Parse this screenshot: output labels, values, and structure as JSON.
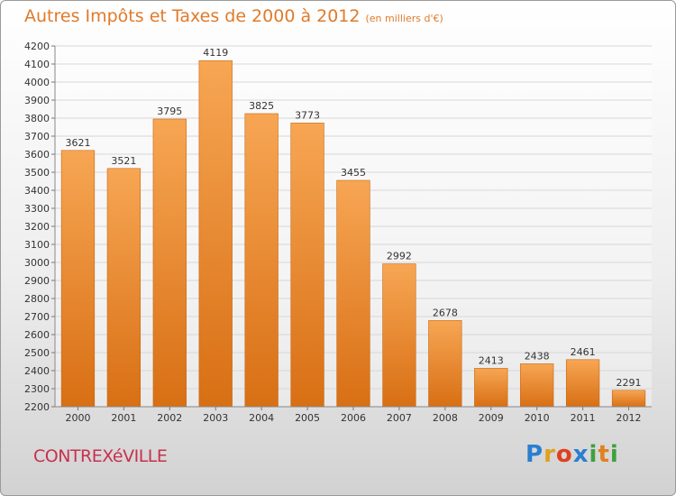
{
  "title": "Autres Impôts et Taxes de 2000 à 2012",
  "unit_note": "(en milliers d'€)",
  "commune": "CONTREXéVILLE",
  "logo": {
    "letters": [
      "P",
      "r",
      "o",
      "x",
      "i",
      "t",
      "i"
    ],
    "colors": [
      "#2a7fd0",
      "#e0a020",
      "#e04020",
      "#2a7fd0",
      "#40a040",
      "#e08020",
      "#40a040"
    ]
  },
  "colors": {
    "bar_top": "#f7a654",
    "bar_bottom": "#d86f14",
    "title": "#e07a2a",
    "commune": "#c8304e",
    "grid": "#d7d7d7",
    "axis": "#777777"
  },
  "chart_data": {
    "type": "bar",
    "categories": [
      "2000",
      "2001",
      "2002",
      "2003",
      "2004",
      "2005",
      "2006",
      "2007",
      "2008",
      "2009",
      "2010",
      "2011",
      "2012"
    ],
    "values": [
      3621,
      3521,
      3795,
      4119,
      3825,
      3773,
      3455,
      2992,
      2678,
      2413,
      2438,
      2461,
      2291
    ],
    "ylim": [
      2200,
      4200
    ],
    "ytick_step": 100,
    "grid": true,
    "data_labels": true
  }
}
